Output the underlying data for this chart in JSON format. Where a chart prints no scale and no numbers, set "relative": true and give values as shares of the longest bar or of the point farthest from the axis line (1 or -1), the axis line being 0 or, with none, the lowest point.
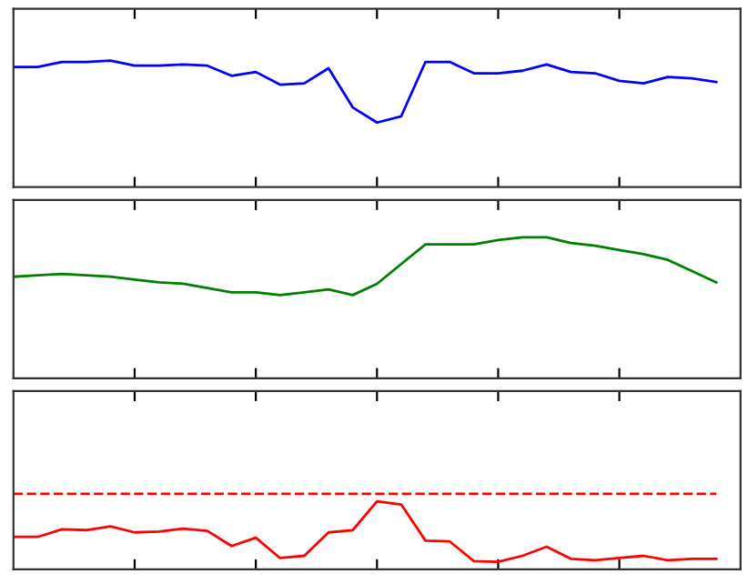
{
  "chart_data": [
    {
      "type": "line",
      "relative": true,
      "categories": [
        null,
        null,
        null,
        null,
        null,
        null,
        null,
        null,
        null,
        null,
        null,
        null,
        null,
        null,
        null,
        null,
        null,
        null,
        null,
        null,
        null,
        null,
        null,
        null,
        null,
        null,
        null,
        null,
        null,
        null
      ],
      "grid": false,
      "legend": false,
      "series": [
        {
          "color": "#0000ff",
          "values": [
            0.95,
            0.95,
            0.99,
            0.99,
            1.0,
            0.96,
            0.96,
            0.97,
            0.96,
            0.88,
            0.91,
            0.81,
            0.82,
            0.94,
            0.63,
            0.51,
            0.56,
            0.99,
            0.99,
            0.9,
            0.9,
            0.92,
            0.97,
            0.91,
            0.9,
            0.84,
            0.82,
            0.87,
            0.86,
            0.83
          ]
        }
      ]
    },
    {
      "type": "line",
      "relative": true,
      "categories": [
        null,
        null,
        null,
        null,
        null,
        null,
        null,
        null,
        null,
        null,
        null,
        null,
        null,
        null,
        null,
        null,
        null,
        null,
        null,
        null,
        null,
        null,
        null,
        null,
        null,
        null,
        null,
        null,
        null,
        null
      ],
      "grid": false,
      "legend": false,
      "series": [
        {
          "color": "#008000",
          "values": [
            0.72,
            0.73,
            0.74,
            0.73,
            0.72,
            0.7,
            0.68,
            0.67,
            0.64,
            0.61,
            0.61,
            0.59,
            0.61,
            0.63,
            0.59,
            0.67,
            0.81,
            0.95,
            0.95,
            0.95,
            0.98,
            1.0,
            1.0,
            0.96,
            0.94,
            0.91,
            0.88,
            0.84,
            0.76,
            0.68
          ]
        }
      ]
    },
    {
      "type": "line",
      "relative": true,
      "categories": [
        null,
        null,
        null,
        null,
        null,
        null,
        null,
        null,
        null,
        null,
        null,
        null,
        null,
        null,
        null,
        null,
        null,
        null,
        null,
        null,
        null,
        null,
        null,
        null,
        null,
        null,
        null,
        null,
        null,
        null
      ],
      "grid": false,
      "legend": false,
      "series": [
        {
          "color": "#ff0000",
          "values": [
            0.43,
            0.43,
            0.53,
            0.52,
            0.57,
            0.49,
            0.5,
            0.54,
            0.51,
            0.31,
            0.42,
            0.15,
            0.18,
            0.49,
            0.52,
            0.9,
            0.86,
            0.38,
            0.37,
            0.11,
            0.1,
            0.18,
            0.3,
            0.14,
            0.12,
            0.15,
            0.18,
            0.12,
            0.14,
            0.14
          ]
        },
        {
          "color": "#ff0000",
          "line_style": "dashed",
          "values": [
            1,
            1,
            1,
            1,
            1,
            1,
            1,
            1,
            1,
            1,
            1,
            1,
            1,
            1,
            1,
            1,
            1,
            1,
            1,
            1,
            1,
            1,
            1,
            1,
            1,
            1,
            1,
            1,
            1,
            1
          ]
        }
      ]
    }
  ]
}
